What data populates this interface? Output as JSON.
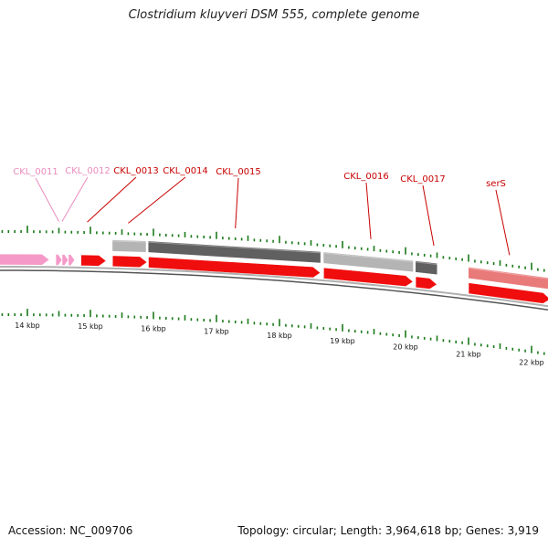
{
  "title": "Clostridium kluyveri DSM 555, complete genome",
  "footer": {
    "accession": "Accession: NC_009706",
    "summary": "Topology: circular; Length: 3,964,618 bp; Genes: 3,919"
  },
  "colors": {
    "gene_red": "#f00d0d",
    "gene_pink": "#f59ac8",
    "gene_light_red": "#e97a7a",
    "label_red": "#c80000",
    "label_pink": "#e98bbd",
    "tick_green": "#1a7a1a",
    "feature_light_gray": "#b4b4b4",
    "feature_dark_gray": "#606060",
    "axis_gray": "#888888"
  },
  "chart_data": {
    "type": "genome-map",
    "axis_unit": "kbp",
    "scale_labels": [
      "14 kbp",
      "15 kbp",
      "16 kbp",
      "17 kbp",
      "18 kbp",
      "19 kbp",
      "20 kbp",
      "21 kbp",
      "22 kbp"
    ],
    "genes": [
      {
        "label": "",
        "start_kbp": 13.35,
        "end_kbp": 14.35,
        "strand": "+",
        "color": "pink"
      },
      {
        "label": "CKL_0011",
        "start_kbp": 14.45,
        "end_kbp": 14.55,
        "strand": "+",
        "color": "pink"
      },
      {
        "label": "",
        "start_kbp": 14.55,
        "end_kbp": 14.65,
        "strand": "+",
        "color": "pink"
      },
      {
        "label": "CKL_0012",
        "start_kbp": 14.65,
        "end_kbp": 14.75,
        "strand": "+",
        "color": "pink"
      },
      {
        "label": "CKL_0013",
        "start_kbp": 14.85,
        "end_kbp": 15.25,
        "strand": "+",
        "color": "red"
      },
      {
        "label": "CKL_0014",
        "start_kbp": 15.35,
        "end_kbp": 15.9,
        "strand": "+",
        "color": "red"
      },
      {
        "label": "CKL_0015",
        "start_kbp": 15.92,
        "end_kbp": 18.65,
        "strand": "+",
        "color": "red"
      },
      {
        "label": "CKL_0016",
        "start_kbp": 18.7,
        "end_kbp": 20.12,
        "strand": "+",
        "color": "red"
      },
      {
        "label": "CKL_0017",
        "start_kbp": 20.16,
        "end_kbp": 20.5,
        "strand": "+",
        "color": "red"
      },
      {
        "label": "serS",
        "start_kbp": 21.0,
        "end_kbp": 22.3,
        "strand": "+",
        "color": "red"
      }
    ],
    "features": [
      {
        "start_kbp": 15.35,
        "end_kbp": 15.88,
        "shade": "light"
      },
      {
        "start_kbp": 15.92,
        "end_kbp": 18.65,
        "shade": "dark"
      },
      {
        "start_kbp": 18.7,
        "end_kbp": 20.12,
        "shade": "light"
      },
      {
        "start_kbp": 20.16,
        "end_kbp": 20.5,
        "shade": "dark"
      },
      {
        "start_kbp": 21.0,
        "end_kbp": 22.3,
        "shade": "light-red"
      }
    ]
  }
}
